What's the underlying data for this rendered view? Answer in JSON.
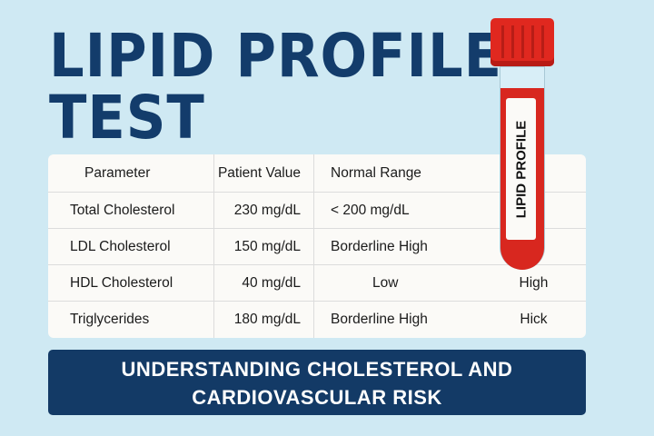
{
  "title": {
    "line1": "LIPID PROFILE",
    "line2": "TEST"
  },
  "table": {
    "headers": [
      "Parameter",
      "Patient Value",
      "Normal Range",
      ""
    ],
    "rows": [
      [
        "Total Cholesterol",
        "230 mg/dL",
        "< 200 mg/dL",
        ""
      ],
      [
        "LDL Cholesterol",
        "150 mg/dL",
        "Borderline High",
        ""
      ],
      [
        "HDL Cholesterol",
        "40 mg/dL",
        "Low",
        "High"
      ],
      [
        "Triglycerides",
        "180 mg/dL",
        "Borderline High",
        "Hick"
      ]
    ]
  },
  "tube": {
    "label": "LIPID PROFILE",
    "cap_color": "#e0281f"
  },
  "banner": {
    "line1": "UNDERSTANDING CHOLESTEROL AND",
    "line2": "CARDIOVASCULAR RISK"
  },
  "colors": {
    "navy": "#133a66",
    "background": "#cfe9f3"
  }
}
